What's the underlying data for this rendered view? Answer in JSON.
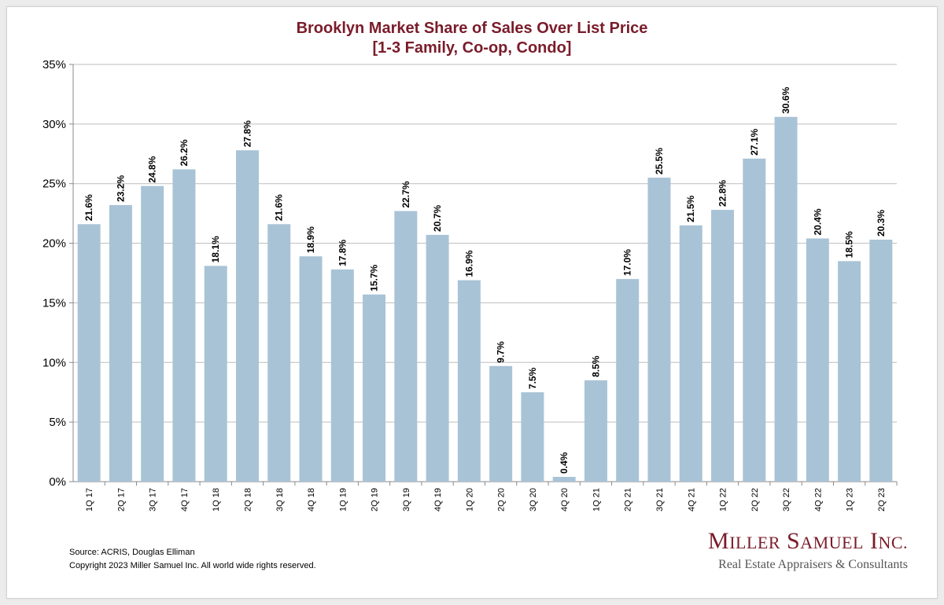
{
  "chart_data": {
    "type": "bar",
    "title_lines": [
      "Brooklyn Market Share of Sales Over List Price",
      "[1-3 Family, Co-op, Condo]"
    ],
    "categories": [
      "1Q 17",
      "2Q 17",
      "3Q 17",
      "4Q 17",
      "1Q 18",
      "2Q 18",
      "3Q 18",
      "4Q 18",
      "1Q 19",
      "2Q 19",
      "3Q 19",
      "4Q 19",
      "1Q 20",
      "2Q 20",
      "3Q 20",
      "4Q 20",
      "1Q 21",
      "2Q 21",
      "3Q 21",
      "4Q 21",
      "1Q 22",
      "2Q 22",
      "3Q 22",
      "4Q 22",
      "1Q 23",
      "2Q 23"
    ],
    "values": [
      21.6,
      23.2,
      24.8,
      26.2,
      18.1,
      27.8,
      21.6,
      18.9,
      17.8,
      15.7,
      22.7,
      20.7,
      16.9,
      9.7,
      7.5,
      0.4,
      8.5,
      17.0,
      25.5,
      21.5,
      22.8,
      27.1,
      30.6,
      20.4,
      18.5,
      20.3
    ],
    "value_labels": [
      "21.6%",
      "23.2%",
      "24.8%",
      "26.2%",
      "18.1%",
      "27.8%",
      "21.6%",
      "18.9%",
      "17.8%",
      "15.7%",
      "22.7%",
      "20.7%",
      "16.9%",
      "9.7%",
      "7.5%",
      "0.4%",
      "8.5%",
      "17.0%",
      "25.5%",
      "21.5%",
      "22.8%",
      "27.1%",
      "30.6%",
      "20.4%",
      "18.5%",
      "20.3%"
    ],
    "ylim": [
      0,
      35
    ],
    "y_ticks": [
      "0%",
      "5%",
      "10%",
      "15%",
      "20%",
      "25%",
      "30%",
      "35%"
    ],
    "grid": true,
    "colors": {
      "bar": "#a9c3d6",
      "grid": "#bdbdbd",
      "title": "#7a1c2a"
    }
  },
  "footer": {
    "source": "Source: ACRIS, Douglas Elliman",
    "copyright": "Copyright 2023 Miller Samuel Inc.  All world wide rights reserved."
  },
  "logo": {
    "name_initial_1": "M",
    "name_rest_1": "ILLER",
    "name_initial_2": "S",
    "name_rest_2": "AMUEL",
    "name_initial_3": "I",
    "name_rest_3": "NC.",
    "tagline": "Real Estate Appraisers & Consultants"
  }
}
